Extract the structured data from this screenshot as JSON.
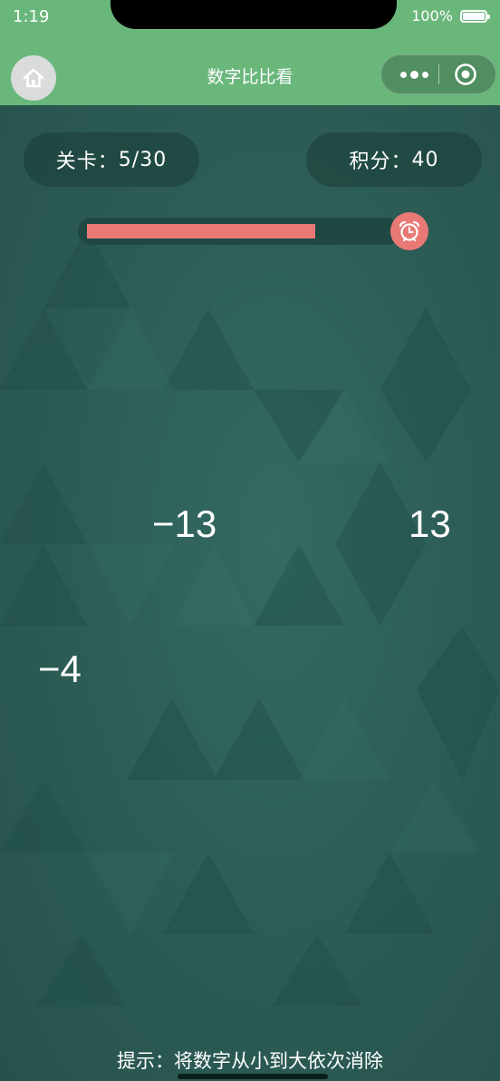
{
  "status_bar": {
    "time": "1:19",
    "battery": "100%"
  },
  "nav": {
    "title": "数字比比看"
  },
  "stats": {
    "level_label": "关卡：",
    "level_value": "5/30",
    "score_label": "积分：",
    "score_value": "40"
  },
  "timer": {
    "remaining_fraction": 0.75
  },
  "tiles": [
    {
      "value": "−13"
    },
    {
      "value": "13"
    },
    {
      "value": "−4"
    }
  ],
  "hint": "提示：将数字从小到大依次消除",
  "colors": {
    "nav_green": "#6ab77c",
    "background": "#2d5e57",
    "timer_red": "#e87975"
  },
  "icons": {
    "home": "home-icon",
    "more": "more-dots-icon",
    "close": "capsule-close-icon",
    "alarm": "alarm-clock-icon"
  }
}
